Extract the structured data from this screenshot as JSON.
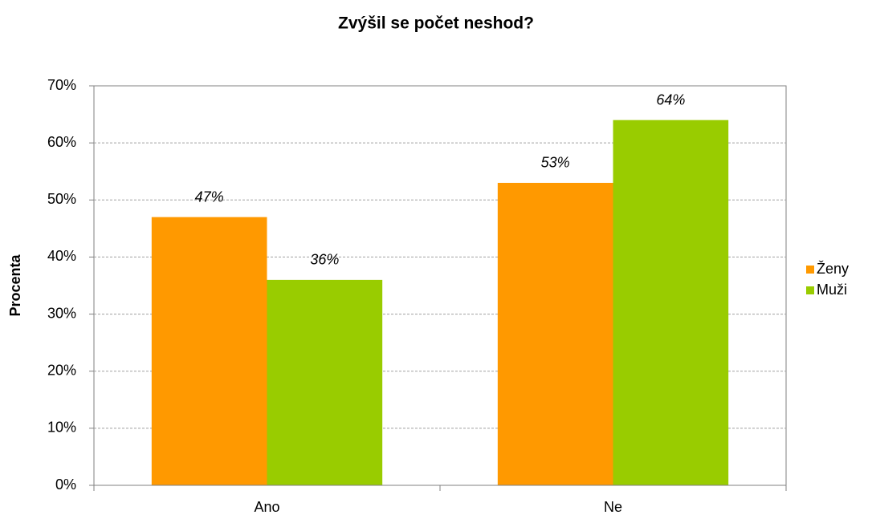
{
  "chart_data": {
    "type": "bar",
    "title": "Zvýšil se počet neshod?",
    "y_label": "Procenta",
    "categories": [
      "Ano",
      "Ne"
    ],
    "series": [
      {
        "name": "Ženy",
        "color": "#ff9900",
        "values": [
          47,
          53
        ],
        "value_labels": [
          "47%",
          "53%"
        ]
      },
      {
        "name": "Muži",
        "color": "#99cc00",
        "values": [
          36,
          64
        ],
        "value_labels": [
          "36%",
          "64%"
        ]
      }
    ],
    "ylim": [
      0,
      70
    ],
    "yticks": [
      {
        "value": 0,
        "label": "0%"
      },
      {
        "value": 10,
        "label": "10%"
      },
      {
        "value": 20,
        "label": "20%"
      },
      {
        "value": 30,
        "label": "30%"
      },
      {
        "value": 40,
        "label": "40%"
      },
      {
        "value": 50,
        "label": "50%"
      },
      {
        "value": 60,
        "label": "60%"
      },
      {
        "value": 70,
        "label": "70%"
      }
    ],
    "grid": true,
    "legend": "right"
  }
}
